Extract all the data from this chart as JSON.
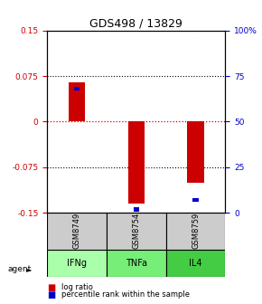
{
  "title": "GDS498 / 13829",
  "samples": [
    "GSM8749",
    "GSM8754",
    "GSM8759"
  ],
  "agents": [
    "IFNg",
    "TNFa",
    "IL4"
  ],
  "log_ratios": [
    0.065,
    -0.135,
    -0.1
  ],
  "percentile_ranks": [
    0.68,
    0.02,
    0.07
  ],
  "ylim": [
    -0.15,
    0.15
  ],
  "yticks_left": [
    -0.15,
    -0.075,
    0,
    0.075,
    0.15
  ],
  "yticks_right": [
    0,
    25,
    50,
    75,
    100
  ],
  "yticks_right_labels": [
    "0",
    "25",
    "50",
    "75",
    "100%"
  ],
  "left_color": "#cc0000",
  "right_color": "#0000cc",
  "bar_color": "#cc0000",
  "blue_color": "#0000cc",
  "sample_bg": "#cccccc",
  "zero_line_color": "#cc0000",
  "bar_width": 0.28,
  "blue_bar_width": 0.1,
  "blue_bar_height": 0.007,
  "agent_colors": [
    "#aaffaa",
    "#77ee77",
    "#44cc44"
  ]
}
